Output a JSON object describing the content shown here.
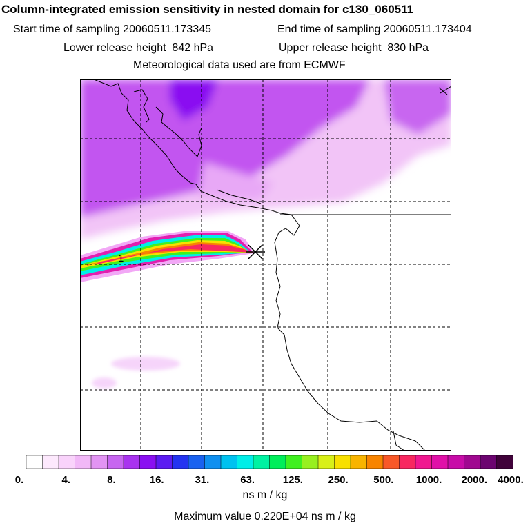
{
  "header": {
    "title": "Column-integrated emission sensitivity in nested domain for c130_060511",
    "start_label": "Start time of sampling 20060511.173345",
    "end_label": "End time of sampling 20060511.173404",
    "lower_label": "Lower release height  842 hPa",
    "upper_label": "Upper release height  830 hPa",
    "met_label": "Meteorological data used are from ECMWF"
  },
  "map": {
    "marker_label": "1"
  },
  "colorbar": {
    "tick_labels": [
      "0.",
      "4.",
      "8.",
      "16.",
      "31.",
      "63.",
      "125.",
      "250.",
      "500.",
      "1000.",
      "2000.",
      "4000."
    ],
    "unit": "ns m / kg",
    "colors": [
      "#ffffff",
      "#fde9fd",
      "#f9d3fb",
      "#f1b8f7",
      "#e294f3",
      "#c766f0",
      "#a933ef",
      "#8a10f1",
      "#5c1cf2",
      "#2434f1",
      "#1a62f0",
      "#1090f0",
      "#00c2f0",
      "#00eee8",
      "#00f2a2",
      "#00ee5a",
      "#40f020",
      "#98f020",
      "#d8f018",
      "#f8e000",
      "#f8b400",
      "#f88400",
      "#f85828",
      "#f82860",
      "#f01890",
      "#e010a8",
      "#c80ca8",
      "#a00890",
      "#6c0470",
      "#40023a"
    ]
  },
  "footer": {
    "max_value": "Maximum value  0.220E+04 ns m / kg"
  }
}
